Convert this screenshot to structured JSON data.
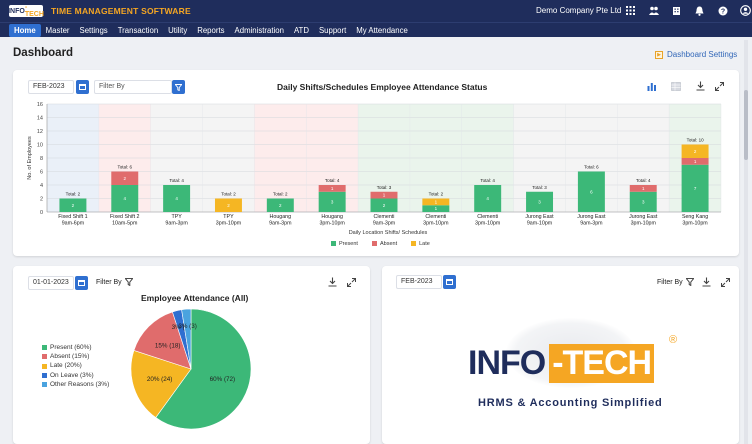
{
  "header": {
    "logo_text": "INFO-TECH",
    "app_title": "TIME MANAGEMENT SOFTWARE",
    "company": "Demo Company Pte Ltd",
    "icons": [
      "apps-icon",
      "team-icon",
      "building-icon",
      "bell-icon",
      "help-icon",
      "user-icon"
    ]
  },
  "nav": {
    "items": [
      "Home",
      "Master",
      "Settings",
      "Transaction",
      "Utility",
      "Reports",
      "Administration",
      "ATD",
      "Support",
      "My Attendance"
    ],
    "active": "Home"
  },
  "page": {
    "title": "Dashboard",
    "settings_label": "Dashboard Settings"
  },
  "shifts_panel": {
    "date": "FEB-2023",
    "filter_placeholder": "Filter By",
    "title": "Daily Shifts/Schedules Employee Attendance Status"
  },
  "attendance_panel": {
    "date": "01-01-2023",
    "filter_label": "Filter By",
    "title": "Employee Attendance (All)"
  },
  "brand_panel": {
    "date": "FEB-2023",
    "filter_label": "Filter By",
    "brand_part1": "INFO",
    "brand_part2": "-TECH",
    "registered": "®",
    "tagline": "HRMS & Accounting Simplified"
  },
  "chart_data": [
    {
      "type": "bar",
      "stacked": true,
      "title": "Daily Shifts/Schedules Employee Attendance Status",
      "xlabel": "Daily Location Shifts/ Schedules",
      "ylabel": "No. of Employees",
      "ylim": [
        0,
        16
      ],
      "yticks": [
        0,
        2,
        4,
        6,
        8,
        10,
        12,
        14,
        16
      ],
      "grid": true,
      "legend_position": "bottom",
      "categories": [
        [
          "Fixed Shift 1",
          "9am-6pm"
        ],
        [
          "Fixed Shift 2",
          "10am-5pm"
        ],
        [
          "TPY",
          "9am-3pm"
        ],
        [
          "TPY",
          "3pm-10pm"
        ],
        [
          "Hougang",
          "9am-3pm"
        ],
        [
          "Hougang",
          "3pm-10pm"
        ],
        [
          "Clementi",
          "9am-3pm"
        ],
        [
          "Clementi",
          "3pm-10pm"
        ],
        [
          "Clementi",
          "3pm-10pm"
        ],
        [
          "Jurong East",
          "9am-10pm"
        ],
        [
          "Jurong East",
          "9am-3pm"
        ],
        [
          "Jurong East",
          "3pm-10pm"
        ],
        [
          "Seng Kang",
          "3pm-10pm"
        ]
      ],
      "totals": [
        "Total: 2",
        "Total: 6",
        "Total: 4",
        "Total: 2",
        "Total: 2",
        "Total: 4",
        "Total: 3",
        "Total: 2",
        "Total: 4",
        "Total: 3",
        "Total: 6",
        "Total: 4",
        "Total: 10"
      ],
      "series": [
        {
          "name": "Present",
          "color": "#3cb878",
          "values": [
            2,
            4,
            4,
            0,
            2,
            3,
            2,
            1,
            4,
            3,
            6,
            3,
            7
          ]
        },
        {
          "name": "Absent",
          "color": "#e06c6c",
          "values": [
            0,
            2,
            0,
            0,
            0,
            1,
            1,
            0,
            0,
            0,
            0,
            1,
            1
          ]
        },
        {
          "name": "Late",
          "color": "#f5b623",
          "values": [
            0,
            0,
            0,
            2,
            0,
            0,
            0,
            1,
            0,
            0,
            0,
            0,
            2
          ]
        }
      ],
      "bands": [
        "#eaf0f8",
        "#fdecec",
        "#f4f4f4",
        "#fdecec",
        "#eaf4ec",
        "#f4f4f4",
        "#eaf4ec"
      ]
    },
    {
      "type": "pie",
      "title": "Employee Attendance (All)",
      "legend_position": "left",
      "slices": [
        {
          "name": "Present (60%)",
          "label": "60% (72)",
          "value": 72,
          "color": "#3cb878"
        },
        {
          "name": "Late (20%)",
          "label": "20% (24)",
          "value": 24,
          "color": "#f5b623"
        },
        {
          "name": "Absent (15%)",
          "label": "15% (18)",
          "value": 18,
          "color": "#e06c6c"
        },
        {
          "name": "On Leave (3%)",
          "label": "3% (3)",
          "value": 3,
          "color": "#2f6fd0"
        },
        {
          "name": "Other Reasons (3%)",
          "label": "3% (3)",
          "value": 3,
          "color": "#4aa3df"
        }
      ],
      "legend_order": [
        "Present (60%)",
        "Absent (15%)",
        "Late (20%)",
        "On Leave (3%)",
        "Other Reasons (3%)"
      ]
    }
  ]
}
